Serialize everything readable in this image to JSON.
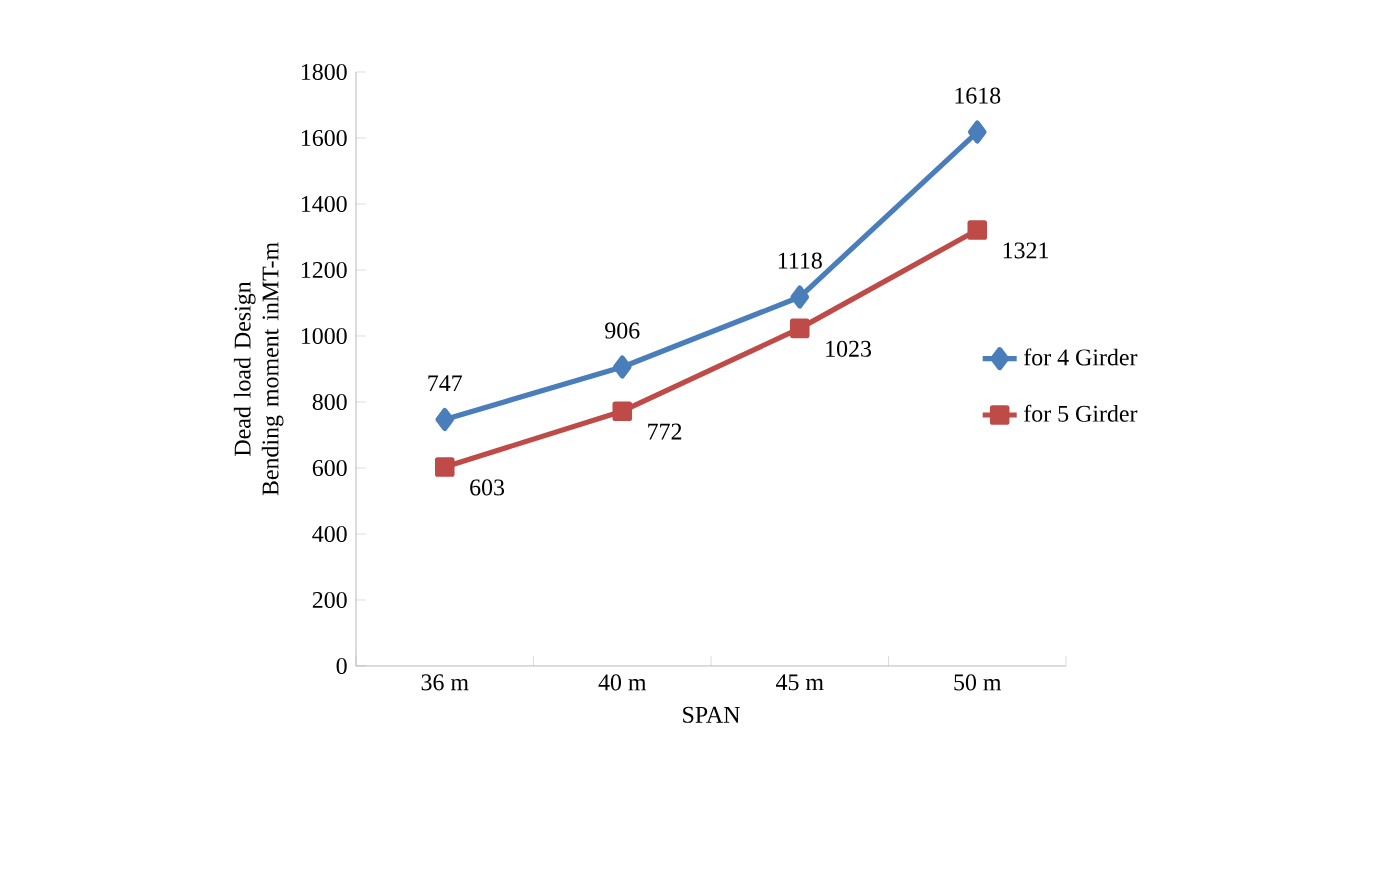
{
  "chart_data": {
    "type": "line",
    "xlabel": "SPAN",
    "ylabel": "Dead load Design Bending moment inMT-m",
    "categories": [
      "36 m",
      "40 m",
      "45 m",
      "50 m"
    ],
    "series": [
      {
        "name": "for 4 Girder",
        "color": "#4a7ebb",
        "marker": "diamond",
        "values": [
          747,
          906,
          1118,
          1618
        ]
      },
      {
        "name": "for 5 Girder",
        "color": "#be4b48",
        "marker": "square",
        "values": [
          603,
          772,
          1023,
          1321
        ]
      }
    ],
    "ylim": [
      0,
      1800
    ],
    "yticks": [
      0,
      200,
      400,
      600,
      800,
      1000,
      1200,
      1400,
      1600,
      1800
    ],
    "data_labels": true,
    "legend": "right",
    "grid": false
  }
}
